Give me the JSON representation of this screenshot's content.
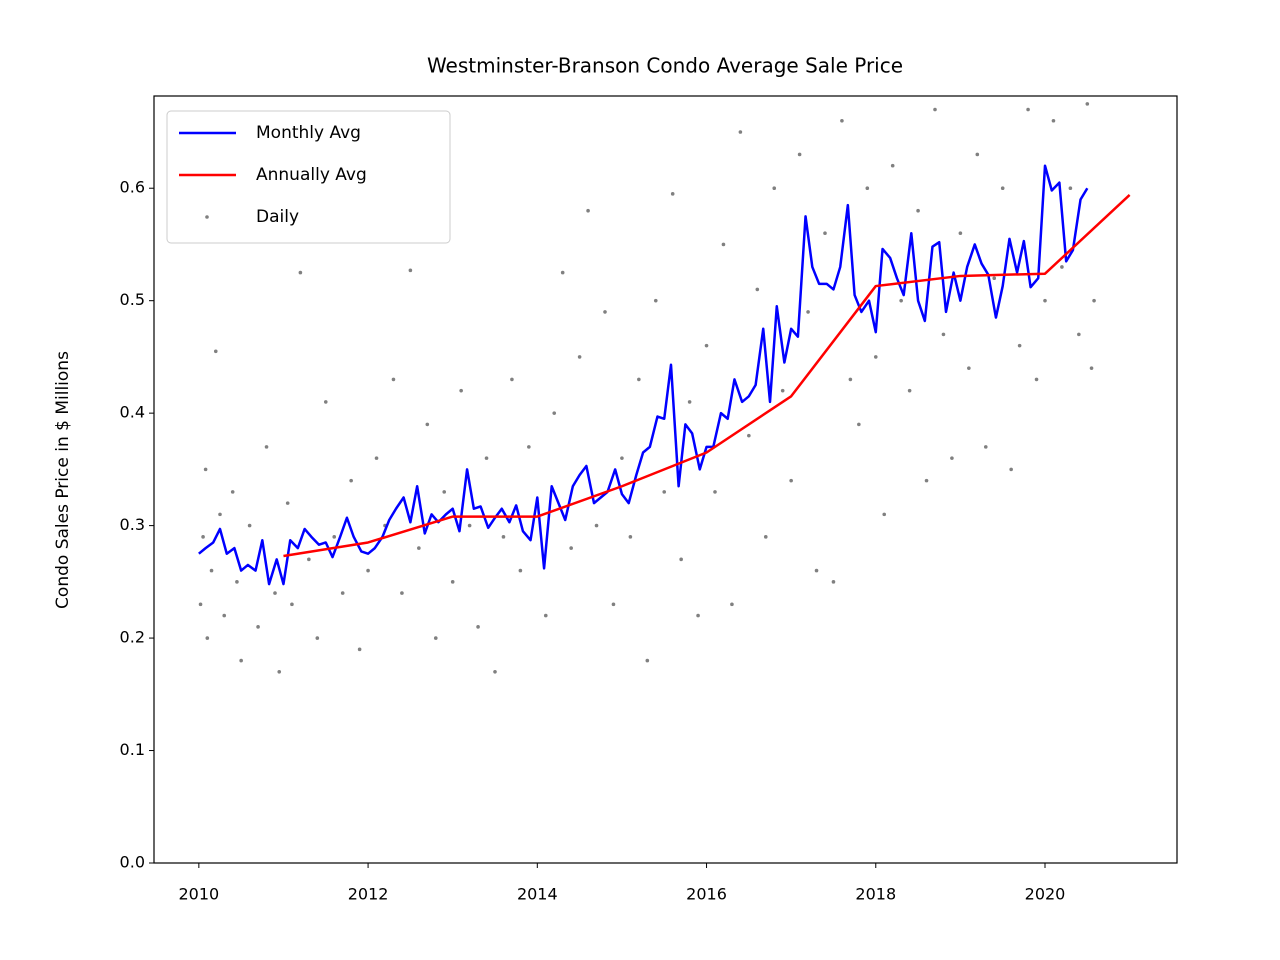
{
  "chart_data": {
    "type": "line",
    "title": "Westminster-Branson Condo Average Sale Price",
    "ylabel": "Condo Sales Price in $ Millions",
    "xlim": [
      2009.47,
      2021.56
    ],
    "ylim": [
      0,
      0.682
    ],
    "xticks": [
      2010,
      2012,
      2014,
      2016,
      2018,
      2020
    ],
    "yticks": [
      {
        "value": 0,
        "label": "0.0"
      },
      0.1,
      0.2,
      0.3,
      0.4,
      0.5,
      0.6
    ],
    "legend": "upper left",
    "series": [
      {
        "name": "Monthly Avg",
        "color": "#0000ff",
        "type": "line",
        "x": [
          2010.0,
          2010.08,
          2010.17,
          2010.25,
          2010.33,
          2010.42,
          2010.5,
          2010.58,
          2010.67,
          2010.75,
          2010.83,
          2010.92,
          2011.0,
          2011.08,
          2011.17,
          2011.25,
          2011.33,
          2011.42,
          2011.5,
          2011.58,
          2011.67,
          2011.75,
          2011.83,
          2011.92,
          2012.0,
          2012.08,
          2012.17,
          2012.25,
          2012.33,
          2012.42,
          2012.5,
          2012.58,
          2012.67,
          2012.75,
          2012.83,
          2012.92,
          2013.0,
          2013.08,
          2013.17,
          2013.25,
          2013.33,
          2013.42,
          2013.5,
          2013.58,
          2013.67,
          2013.75,
          2013.83,
          2013.92,
          2014.0,
          2014.08,
          2014.17,
          2014.25,
          2014.33,
          2014.42,
          2014.5,
          2014.58,
          2014.67,
          2014.75,
          2014.83,
          2014.92,
          2015.0,
          2015.08,
          2015.17,
          2015.25,
          2015.33,
          2015.42,
          2015.5,
          2015.58,
          2015.67,
          2015.75,
          2015.83,
          2015.92,
          2016.0,
          2016.08,
          2016.17,
          2016.25,
          2016.33,
          2016.42,
          2016.5,
          2016.58,
          2016.67,
          2016.75,
          2016.83,
          2016.92,
          2017.0,
          2017.08,
          2017.17,
          2017.25,
          2017.33,
          2017.42,
          2017.5,
          2017.58,
          2017.67,
          2017.75,
          2017.83,
          2017.92,
          2018.0,
          2018.08,
          2018.17,
          2018.25,
          2018.33,
          2018.42,
          2018.5,
          2018.58,
          2018.67,
          2018.75,
          2018.83,
          2018.92,
          2019.0,
          2019.08,
          2019.17,
          2019.25,
          2019.33,
          2019.42,
          2019.5,
          2019.58,
          2019.67,
          2019.75,
          2019.83,
          2019.92,
          2020.0,
          2020.08,
          2020.17,
          2020.25,
          2020.33,
          2020.42,
          2020.5
        ],
        "values": [
          0.275,
          0.28,
          0.285,
          0.297,
          0.275,
          0.28,
          0.26,
          0.265,
          0.26,
          0.287,
          0.248,
          0.27,
          0.248,
          0.287,
          0.28,
          0.297,
          0.29,
          0.283,
          0.285,
          0.272,
          0.29,
          0.307,
          0.29,
          0.277,
          0.275,
          0.28,
          0.29,
          0.305,
          0.315,
          0.325,
          0.303,
          0.335,
          0.293,
          0.31,
          0.303,
          0.31,
          0.315,
          0.295,
          0.35,
          0.315,
          0.317,
          0.298,
          0.307,
          0.315,
          0.303,
          0.318,
          0.295,
          0.287,
          0.325,
          0.262,
          0.335,
          0.32,
          0.305,
          0.335,
          0.345,
          0.353,
          0.32,
          0.325,
          0.33,
          0.35,
          0.328,
          0.32,
          0.345,
          0.365,
          0.37,
          0.397,
          0.395,
          0.443,
          0.335,
          0.39,
          0.382,
          0.35,
          0.37,
          0.37,
          0.4,
          0.395,
          0.43,
          0.41,
          0.415,
          0.425,
          0.475,
          0.41,
          0.495,
          0.445,
          0.475,
          0.468,
          0.575,
          0.53,
          0.515,
          0.515,
          0.51,
          0.53,
          0.585,
          0.505,
          0.49,
          0.5,
          0.472,
          0.546,
          0.538,
          0.52,
          0.505,
          0.56,
          0.5,
          0.482,
          0.548,
          0.552,
          0.49,
          0.525,
          0.5,
          0.53,
          0.55,
          0.533,
          0.523,
          0.485,
          0.513,
          0.555,
          0.525,
          0.553,
          0.512,
          0.52,
          0.62,
          0.598,
          0.605,
          0.535,
          0.545,
          0.59,
          0.6
        ]
      },
      {
        "name": "Annually Avg",
        "color": "#ff0000",
        "type": "line",
        "x": [
          2011,
          2012,
          2013,
          2014,
          2015,
          2016,
          2017,
          2018,
          2019,
          2020,
          2021
        ],
        "values": [
          0.273,
          0.285,
          0.308,
          0.308,
          0.335,
          0.365,
          0.415,
          0.513,
          0.522,
          0.524,
          0.594
        ]
      },
      {
        "name": "Daily",
        "color": "#808080",
        "type": "scatter",
        "x": [
          2010.02,
          2010.05,
          2010.08,
          2010.1,
          2010.15,
          2010.2,
          2010.25,
          2010.3,
          2010.4,
          2010.45,
          2010.5,
          2010.6,
          2010.7,
          2010.8,
          2010.9,
          2010.95,
          2011.05,
          2011.1,
          2011.2,
          2011.3,
          2011.4,
          2011.5,
          2011.6,
          2011.7,
          2011.8,
          2011.9,
          2012.0,
          2012.1,
          2012.2,
          2012.3,
          2012.4,
          2012.5,
          2012.6,
          2012.7,
          2012.8,
          2012.9,
          2013.0,
          2013.1,
          2013.2,
          2013.3,
          2013.4,
          2013.5,
          2013.6,
          2013.7,
          2013.8,
          2013.9,
          2014.0,
          2014.1,
          2014.2,
          2014.3,
          2014.4,
          2014.5,
          2014.6,
          2014.7,
          2014.8,
          2014.9,
          2015.0,
          2015.1,
          2015.2,
          2015.3,
          2015.4,
          2015.5,
          2015.6,
          2015.7,
          2015.8,
          2015.9,
          2016.0,
          2016.1,
          2016.2,
          2016.3,
          2016.4,
          2016.5,
          2016.6,
          2016.7,
          2016.8,
          2016.9,
          2017.0,
          2017.1,
          2017.2,
          2017.3,
          2017.4,
          2017.5,
          2017.6,
          2017.7,
          2017.8,
          2017.9,
          2018.0,
          2018.1,
          2018.2,
          2018.3,
          2018.4,
          2018.5,
          2018.6,
          2018.7,
          2018.8,
          2018.9,
          2019.0,
          2019.1,
          2019.2,
          2019.3,
          2019.4,
          2019.5,
          2019.6,
          2019.7,
          2019.8,
          2019.9,
          2020.0,
          2020.1,
          2020.2,
          2020.3,
          2020.4,
          2020.5,
          2020.55,
          2020.58
        ],
        "values": [
          0.23,
          0.29,
          0.35,
          0.2,
          0.26,
          0.455,
          0.31,
          0.22,
          0.33,
          0.25,
          0.18,
          0.3,
          0.21,
          0.37,
          0.24,
          0.17,
          0.32,
          0.23,
          0.525,
          0.27,
          0.2,
          0.41,
          0.29,
          0.24,
          0.34,
          0.19,
          0.26,
          0.36,
          0.3,
          0.43,
          0.24,
          0.527,
          0.28,
          0.39,
          0.2,
          0.33,
          0.25,
          0.42,
          0.3,
          0.21,
          0.36,
          0.17,
          0.29,
          0.43,
          0.26,
          0.37,
          0.32,
          0.22,
          0.4,
          0.525,
          0.28,
          0.45,
          0.58,
          0.3,
          0.49,
          0.23,
          0.36,
          0.29,
          0.43,
          0.18,
          0.5,
          0.33,
          0.595,
          0.27,
          0.41,
          0.22,
          0.46,
          0.33,
          0.55,
          0.23,
          0.65,
          0.38,
          0.51,
          0.29,
          0.6,
          0.42,
          0.34,
          0.63,
          0.49,
          0.26,
          0.56,
          0.25,
          0.66,
          0.43,
          0.39,
          0.6,
          0.45,
          0.31,
          0.62,
          0.5,
          0.42,
          0.58,
          0.34,
          0.67,
          0.47,
          0.36,
          0.56,
          0.44,
          0.63,
          0.37,
          0.52,
          0.6,
          0.35,
          0.46,
          0.67,
          0.43,
          0.5,
          0.66,
          0.53,
          0.6,
          0.47,
          0.675,
          0.44,
          0.5
        ]
      }
    ]
  }
}
